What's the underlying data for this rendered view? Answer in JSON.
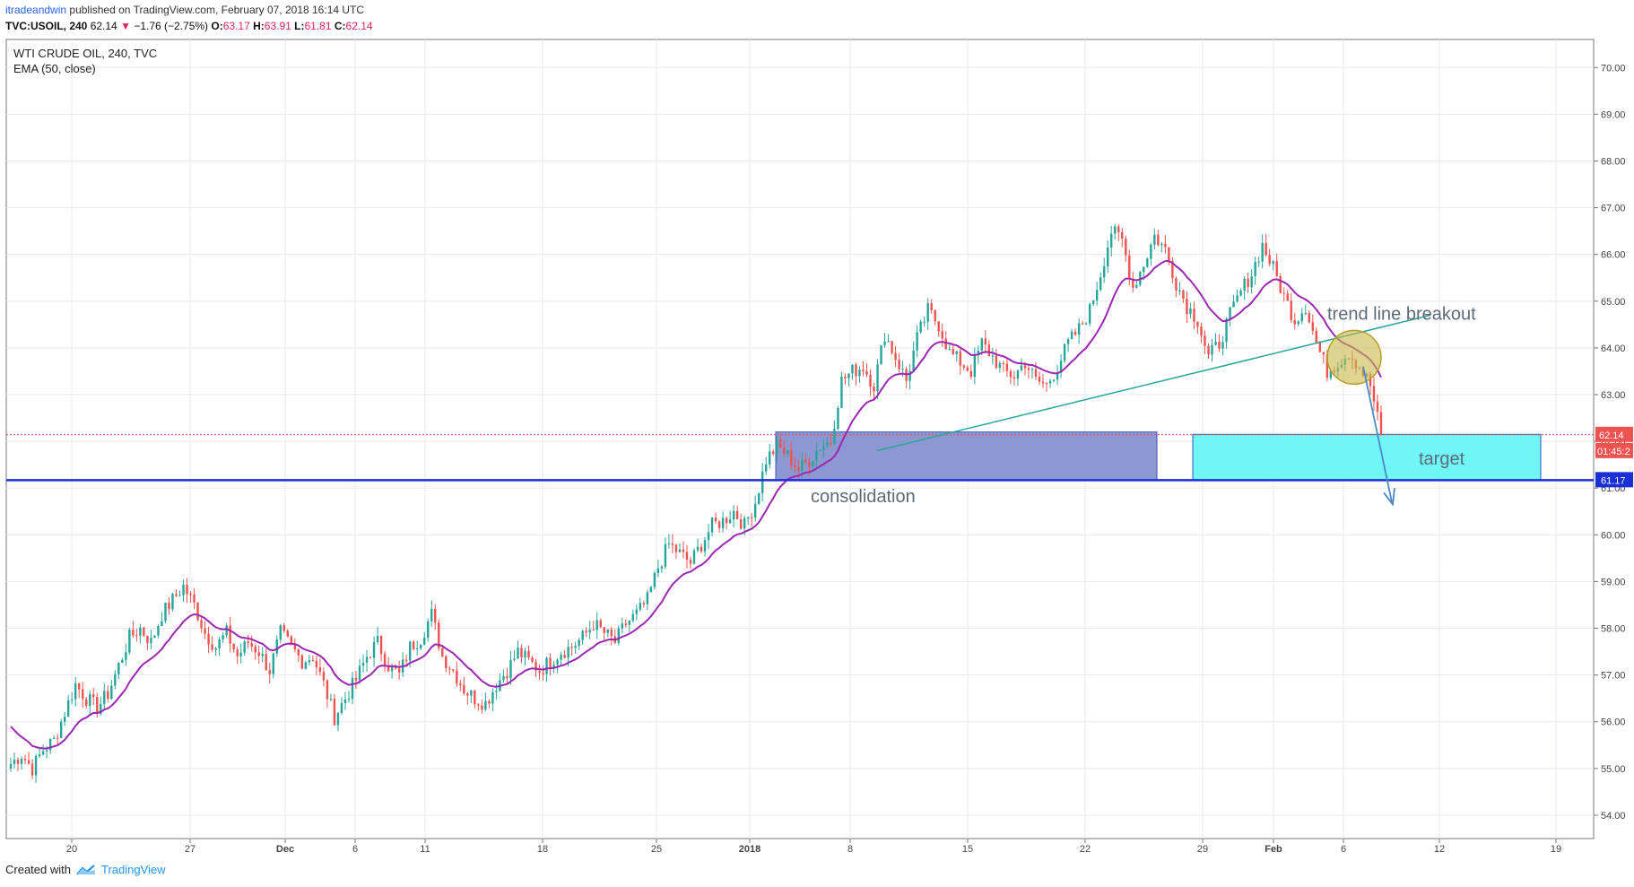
{
  "header": {
    "user": "itradeandwin",
    "published": "published on TradingView.com, February 07, 2018 16:14 UTC",
    "symbol": "TVC:USOIL, 240",
    "last": "62.14",
    "change": "−1.76 (−2.75%)",
    "open_label": "O:",
    "open": "63.17",
    "high_label": "H:",
    "high": "63.91",
    "low_label": "L:",
    "low": "61.81",
    "close_label": "C:",
    "close": "62.14"
  },
  "legend": {
    "title": "WTI CRUDE OIL, 240, TVC",
    "indicator": "EMA (50, close)"
  },
  "footer": {
    "created_with": "Created with",
    "brand": "TradingView"
  },
  "colors": {
    "up": "#26a69a",
    "down": "#ef5350",
    "ema": "#9c27b0",
    "support": "#1a2fd6",
    "consolidation_box": "#7986cb",
    "target_box": "#5ff5f5",
    "trendline": "#26a69a",
    "price_tag": "#ef5350"
  },
  "chart_data": {
    "type": "candlestick",
    "ylim": [
      53.5,
      70.6
    ],
    "y_ticks": [
      "54.00",
      "55.00",
      "56.00",
      "57.00",
      "58.00",
      "59.00",
      "60.00",
      "61.00",
      "62.00",
      "63.00",
      "64.00",
      "65.00",
      "66.00",
      "67.00",
      "68.00",
      "69.00",
      "70.00"
    ],
    "x_ticks": [
      "20",
      "27",
      "Dec",
      "6",
      "11",
      "18",
      "25",
      "2018",
      "8",
      "15",
      "22",
      "29",
      "Feb",
      "6",
      "12",
      "19"
    ],
    "close_path": [
      55.1,
      55.3,
      55.0,
      55.4,
      55.6,
      56.2,
      56.8,
      56.5,
      56.3,
      56.6,
      57.2,
      57.8,
      58.0,
      57.7,
      58.3,
      58.6,
      58.9,
      58.5,
      57.9,
      57.6,
      57.9,
      57.4,
      57.7,
      57.5,
      57.1,
      57.9,
      57.6,
      57.3,
      57.4,
      56.8,
      56.1,
      56.5,
      56.9,
      57.4,
      57.7,
      57.2,
      57.0,
      57.6,
      57.8,
      58.3,
      57.4,
      57.1,
      56.7,
      56.5,
      56.4,
      56.8,
      57.1,
      57.5,
      57.3,
      57.1,
      57.3,
      57.5,
      57.6,
      57.8,
      58.1,
      57.9,
      57.7,
      58.1,
      58.3,
      58.6,
      59.3,
      59.8,
      59.6,
      59.4,
      59.8,
      60.2,
      60.3,
      60.5,
      60.2,
      60.7,
      61.6,
      61.9,
      61.7,
      61.4,
      61.6,
      61.9,
      62.0,
      63.3,
      63.5,
      63.6,
      63.2,
      64.3,
      63.8,
      63.3,
      64.2,
      64.8,
      64.5,
      63.9,
      63.7,
      63.5,
      64.1,
      63.8,
      63.5,
      63.4,
      63.7,
      63.3,
      63.2,
      63.6,
      64.1,
      64.4,
      64.8,
      65.6,
      66.5,
      66.3,
      65.3,
      65.8,
      66.4,
      66.1,
      65.4,
      64.9,
      64.6,
      63.8,
      64.1,
      64.7,
      65.2,
      65.6,
      66.2,
      65.7,
      65.1,
      64.6,
      64.9,
      64.1,
      63.5,
      63.7,
      63.9,
      63.6,
      63.2,
      62.14
    ],
    "annotations": [
      {
        "text": "trend line breakout"
      },
      {
        "text": "consolidation"
      },
      {
        "text": "target"
      }
    ],
    "ema_period": 50,
    "support_level": "61.17",
    "price_tag": "62.14",
    "countdown": "01:45:2"
  }
}
